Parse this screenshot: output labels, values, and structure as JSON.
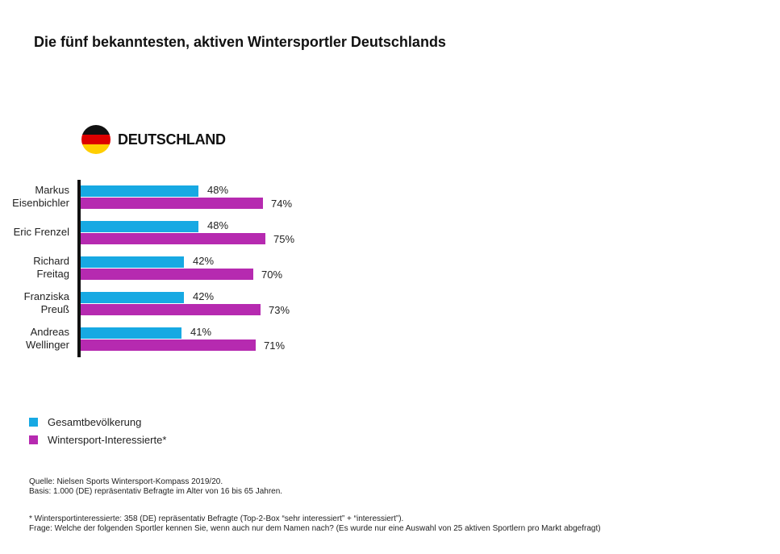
{
  "title": "Die fünf bekanntesten, aktiven Wintersportler Deutschlands",
  "country": {
    "label": "DEUTSCHLAND",
    "flag_colors": [
      "#111111",
      "#dd0000",
      "#ffce00"
    ]
  },
  "colors": {
    "gesamt": "#17a9e3",
    "wintersport": "#b62ab0"
  },
  "chart_data": {
    "type": "bar",
    "orientation": "horizontal",
    "categories": [
      [
        "Markus",
        "Eisenbichler"
      ],
      [
        "Eric Frenzel"
      ],
      [
        "Richard",
        "Freitag"
      ],
      [
        "Franziska",
        "Preuß"
      ],
      [
        "Andreas",
        "Wellinger"
      ]
    ],
    "series": [
      {
        "name": "Gesamtbevölkerung",
        "values": [
          48,
          48,
          42,
          42,
          41
        ],
        "labels": [
          "48%",
          "48%",
          "42%",
          "42%",
          "41%"
        ]
      },
      {
        "name": "Wintersport-Interessierte*",
        "values": [
          74,
          75,
          70,
          73,
          71
        ],
        "labels": [
          "74%",
          "75%",
          "70%",
          "73%",
          "71%"
        ]
      }
    ],
    "xlim": [
      0,
      100
    ],
    "legend_position": "bottom-left"
  },
  "legend": [
    {
      "label": "Gesamtbevölkerung"
    },
    {
      "label": "Wintersport-Interessierte*"
    }
  ],
  "footer": {
    "source": "Quelle: Nielsen Sports Wintersport-Kompass 2019/20.",
    "basis": "Basis: 1.000 (DE) repräsentativ Befragte im Alter von 16 bis 65 Jahren.",
    "note": "* Wintersportinteressierte: 358 (DE) repräsentativ Befragte (Top-2-Box “sehr interessiert” + “interessiert”).",
    "question": "Frage: Welche der folgenden Sportler kennen Sie, wenn auch nur dem Namen nach? (Es wurde nur eine Auswahl von 25 aktiven Sportlern pro Markt abgefragt)"
  }
}
